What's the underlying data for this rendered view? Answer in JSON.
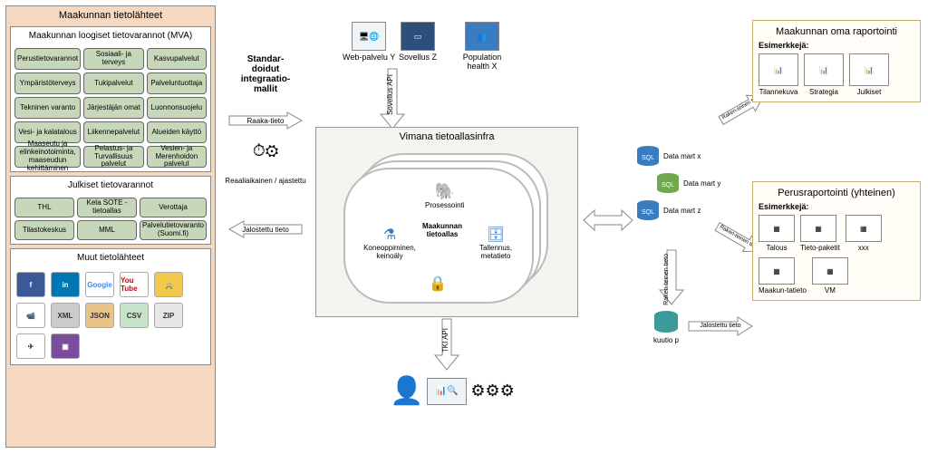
{
  "colors": {
    "leftPanelBg": "#f6d7c0",
    "pillBg": "#c7d8ba",
    "cloudAreaBg": "#f6f4f0",
    "reportPanelBg": "#fffdf5",
    "reportPanelBorder": "#c9b070",
    "blueAccent": "#3b7bbf",
    "green": "#6fa84f",
    "orange": "#ed9a2b",
    "yellow": "#f2c94c",
    "darkBlue": "#2d4f7c",
    "fb": "#3b5998",
    "linkedin": "#0077b5",
    "youtube": "#cc0000",
    "googleBlue": "#4285f4",
    "gray": "#888888"
  },
  "leftPanel": {
    "title": "Maakunnan tietolähteet",
    "mva": {
      "title": "Maakunnan loogiset tietovarannot (MVA)",
      "items": [
        "Perustietovarannot",
        "Sosiaali- ja terveys",
        "Kasvupalvelut",
        "Ympäristöterveys",
        "Tukipalvelut",
        "Palveluntuottaja",
        "Tekninen varanto",
        "Järjestäjän omat",
        "Luonnonsuojelu",
        "Vesi- ja kalatalous",
        "Liikennepalvelut",
        "Alueiden käyttö",
        "Maaseutu ja elinkeinotoiminta, maaseudun kehittäminen",
        "Pelastus- ja Turvallisuus palvelut",
        "Vesien- ja Merenhoidon palvelut"
      ]
    },
    "julkiset": {
      "title": "Julkiset tietovarannot",
      "items": [
        "THL",
        "Kela SOTE - tietoallas",
        "Verottaja",
        "Tilastokeskus",
        "MML",
        "Palvelutietovaranto (Suomi.fi)"
      ]
    },
    "other": {
      "title": "Muut tietolähteet",
      "items": [
        {
          "name": "facebook",
          "label": "f",
          "bg": "#3b5998",
          "fg": "#fff"
        },
        {
          "name": "linkedin",
          "label": "in",
          "bg": "#0077b5",
          "fg": "#fff"
        },
        {
          "name": "google",
          "label": "Google",
          "bg": "#fff",
          "fg": "#4285f4"
        },
        {
          "name": "youtube",
          "label": "You Tube",
          "bg": "#fff",
          "fg": "#cc0000"
        },
        {
          "name": "taxi",
          "label": "🚕",
          "bg": "#f2c94c",
          "fg": "#000"
        },
        {
          "name": "cctv",
          "label": "📹",
          "bg": "#fff",
          "fg": "#333"
        },
        {
          "name": "xml",
          "label": "XML",
          "bg": "#ccc",
          "fg": "#333"
        },
        {
          "name": "json",
          "label": "JSON",
          "bg": "#eac38a",
          "fg": "#333"
        },
        {
          "name": "csv",
          "label": "CSV",
          "bg": "#c8e2c8",
          "fg": "#333"
        },
        {
          "name": "zip",
          "label": "ZIP",
          "bg": "#e6e6e6",
          "fg": "#333"
        },
        {
          "name": "drone",
          "label": "✈",
          "bg": "#fff",
          "fg": "#333"
        },
        {
          "name": "cube",
          "label": "▣",
          "bg": "#7b4b9e",
          "fg": "#fff"
        }
      ]
    }
  },
  "integration": {
    "title": "Standar-\ndoidut\nintegraatio-\nmallit",
    "arrows": [
      "Raaka-tieto",
      "Reaaliaikainen / ajastettu",
      "Jalostettu tieto"
    ],
    "clockLabel": "⏱⚙"
  },
  "topApps": [
    {
      "name": "web-service-y",
      "icon": "🖥",
      "label": "Web-palvelu Y"
    },
    {
      "name": "application-z",
      "icon": "📱",
      "label": "Sovellus Z"
    },
    {
      "name": "population-health-x",
      "icon": "👥",
      "label": "Population health X"
    }
  ],
  "cloudArea": {
    "title": "Vimana tietoallasinfra",
    "apiTop": "Sovellus API",
    "apiBottom": "TKI API",
    "cloudTitle": "Maakunnan tietoallas",
    "components": [
      {
        "name": "prosessointi",
        "label": "Prosessointi",
        "icon": "🐘",
        "color": "#f2c94c"
      },
      {
        "name": "koneoppiminen",
        "label": "Koneoppiminen, keinoäly",
        "icon": "⚗",
        "color": "#3b7bbf"
      },
      {
        "name": "tallennus",
        "label": "Tallennus, metatieto",
        "icon": "🗄",
        "color": "#3b7bbf"
      },
      {
        "name": "security",
        "label": "",
        "icon": "🔒",
        "color": "#3b7bbf"
      }
    ]
  },
  "tkiIcons": [
    "💡👤",
    "📊",
    "⚙",
    "⚙",
    "⚙"
  ],
  "dataMarts": [
    {
      "name": "data-mart-x",
      "label": "Data mart x",
      "bg": "#3b7bbf"
    },
    {
      "name": "data-mart-y",
      "label": "Data mart y",
      "bg": "#6fa84f"
    },
    {
      "name": "data-mart-z",
      "label": "Data mart z",
      "bg": "#3b7bbf"
    },
    {
      "name": "kuutio-p",
      "label": "kuutio p",
      "bg": "#3b9b9b"
    }
  ],
  "flowLabels": {
    "rakenteinenTieto": "Raken-teinen tieto",
    "jalostettuTieto": "Jalostettu tieto"
  },
  "reporting1": {
    "title": "Maakunnan oma raportointi",
    "subtitle": "Esimerkkejä:",
    "items": [
      {
        "name": "tilannekuva",
        "label": "Tilannekuva"
      },
      {
        "name": "strategia",
        "label": "Strategia"
      },
      {
        "name": "julkiset",
        "label": "Julkiset"
      }
    ]
  },
  "reporting2": {
    "title": "Perusraportointi (yhteinen)",
    "subtitle": "Esimerkkejä:",
    "items": [
      {
        "name": "talous",
        "label": "Talous"
      },
      {
        "name": "tietopaketit",
        "label": "Tieto-paketit"
      },
      {
        "name": "xxx",
        "label": "xxx"
      },
      {
        "name": "maakuntatieto",
        "label": "Maakun-tatieto"
      },
      {
        "name": "vm",
        "label": "VM"
      }
    ]
  }
}
